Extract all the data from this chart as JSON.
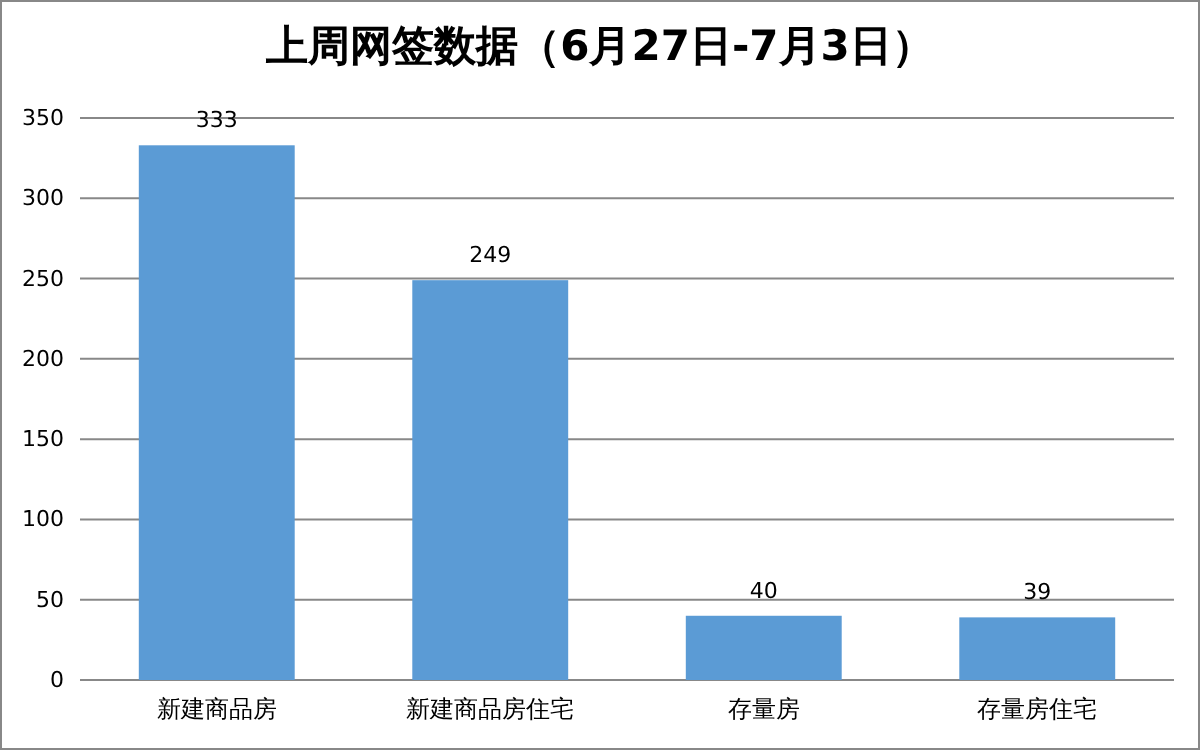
{
  "chart_data": {
    "type": "bar",
    "title": "上周网签数据（6月27日-7月3日）",
    "categories": [
      "新建商品房",
      "新建商品房住宅",
      "存量房",
      "存量房住宅"
    ],
    "values": [
      333,
      249,
      40,
      39
    ],
    "color": "#5b9bd5",
    "ylim": [
      0,
      350
    ],
    "yticks": [
      0,
      50,
      100,
      150,
      200,
      250,
      300,
      350
    ],
    "grid": "y",
    "data_labels": true
  }
}
